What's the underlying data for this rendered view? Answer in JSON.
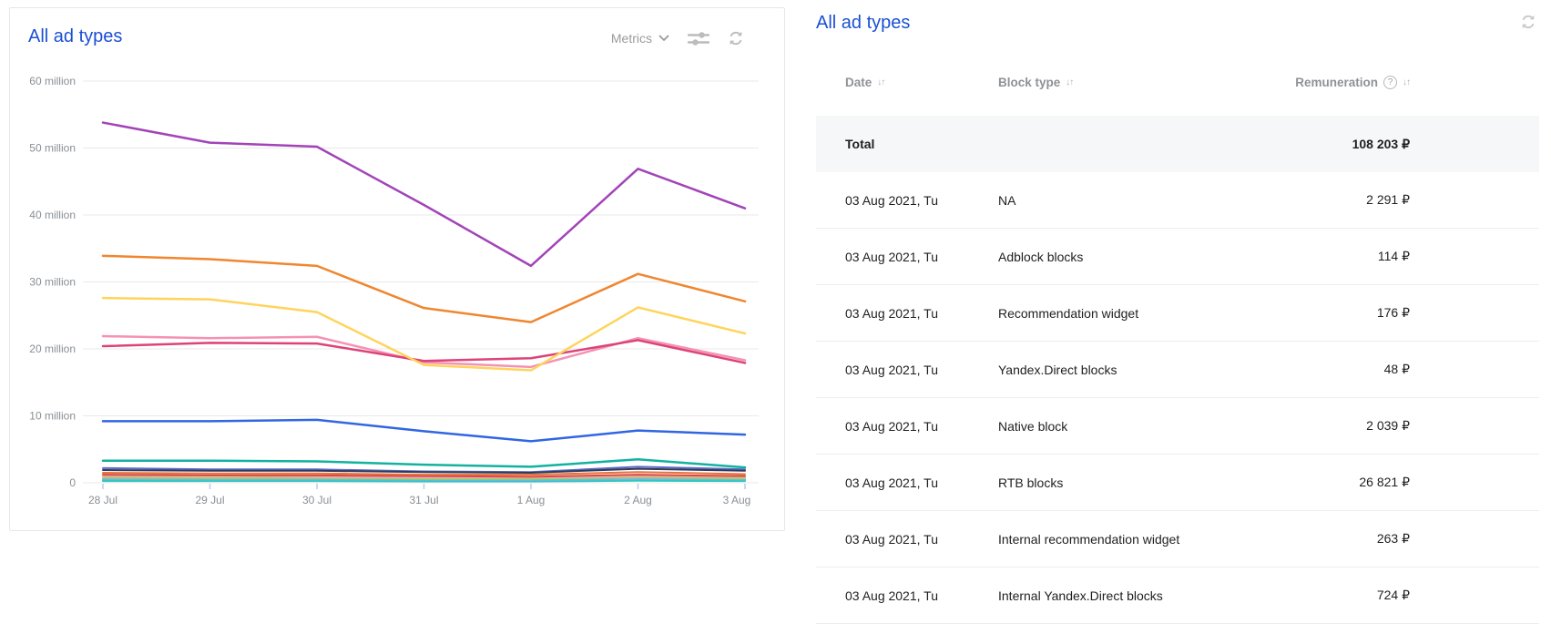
{
  "left_panel": {
    "title": "All ad types",
    "metrics_label": "Metrics",
    "chart_data": {
      "type": "line",
      "title": "All ad types",
      "x_labels": [
        "28 Jul",
        "29 Jul",
        "30 Jul",
        "31 Jul",
        "1 Aug",
        "2 Aug",
        "3 Aug"
      ],
      "y_tick_labels": [
        "0",
        "10 million",
        "20 million",
        "30 million",
        "40 million",
        "50 million",
        "60 million"
      ],
      "y_unit": "million impressions",
      "ylim": [
        0,
        60
      ],
      "grid": true,
      "legend_position": "none",
      "series": [
        {
          "name": "gray",
          "color": "#9aa4ae",
          "width": 2,
          "values": [
            0.4,
            0.4,
            0.35,
            0.35,
            0.3,
            0.4,
            0.35
          ]
        },
        {
          "name": "cyan",
          "color": "#2ec8c0",
          "width": 2,
          "values": [
            0.25,
            0.25,
            0.25,
            0.2,
            0.2,
            0.3,
            0.25
          ]
        },
        {
          "name": "sky-blue",
          "color": "#6fb4e8",
          "width": 2,
          "values": [
            0.55,
            0.5,
            0.5,
            0.45,
            0.4,
            0.55,
            0.5
          ]
        },
        {
          "name": "light-green",
          "color": "#a3ce5f",
          "width": 2,
          "values": [
            0.75,
            0.7,
            0.7,
            0.6,
            0.6,
            0.8,
            0.65
          ]
        },
        {
          "name": "pale-pink",
          "color": "#f3a8c0",
          "width": 2,
          "values": [
            1.0,
            1.0,
            0.9,
            0.8,
            0.8,
            1.0,
            0.9
          ]
        },
        {
          "name": "red",
          "color": "#d84a3f",
          "width": 2,
          "values": [
            1.2,
            1.1,
            1.1,
            1.0,
            0.9,
            1.2,
            1.0
          ]
        },
        {
          "name": "deep-orange",
          "color": "#e8703a",
          "width": 2,
          "values": [
            1.5,
            1.4,
            1.4,
            1.2,
            1.2,
            1.6,
            1.3
          ]
        },
        {
          "name": "indigo",
          "color": "#5e6bc8",
          "width": 2,
          "values": [
            2.2,
            2.0,
            2.0,
            1.7,
            1.6,
            2.4,
            2.0
          ]
        },
        {
          "name": "navy",
          "color": "#2e3a59",
          "width": 2,
          "values": [
            1.9,
            1.8,
            1.8,
            1.6,
            1.5,
            2.1,
            1.8
          ]
        },
        {
          "name": "teal",
          "color": "#12b1a1",
          "width": 2.5,
          "values": [
            3.3,
            3.3,
            3.2,
            2.7,
            2.4,
            3.5,
            2.3
          ]
        },
        {
          "name": "blue",
          "color": "#3166e2",
          "width": 2.5,
          "values": [
            9.2,
            9.2,
            9.4,
            7.7,
            6.2,
            7.8,
            7.2
          ]
        },
        {
          "name": "light-pink",
          "color": "#f492b3",
          "width": 2.5,
          "values": [
            21.9,
            21.6,
            21.8,
            18.0,
            17.3,
            21.6,
            18.3
          ]
        },
        {
          "name": "crimson",
          "color": "#dd4379",
          "width": 2.5,
          "values": [
            20.4,
            20.9,
            20.8,
            18.2,
            18.6,
            21.3,
            17.9
          ]
        },
        {
          "name": "yellow",
          "color": "#ffd45c",
          "width": 2.5,
          "values": [
            27.6,
            27.4,
            25.5,
            17.6,
            16.8,
            26.2,
            22.3
          ]
        },
        {
          "name": "orange",
          "color": "#f0862f",
          "width": 2.5,
          "values": [
            33.9,
            33.4,
            32.4,
            26.1,
            24.0,
            31.2,
            27.1
          ]
        },
        {
          "name": "purple",
          "color": "#a244b8",
          "width": 2.5,
          "values": [
            53.8,
            50.8,
            50.2,
            41.5,
            32.4,
            46.9,
            41.0
          ]
        }
      ]
    },
    "colors": {
      "axis_text": "#8a8f94",
      "gridline": "#e9e9e9",
      "tick": "#b9cde8"
    }
  },
  "right_panel": {
    "title": "All ad types",
    "glyphs": {
      "sort": "↓↑",
      "help": "?"
    },
    "table": {
      "columns": [
        {
          "label": "Date"
        },
        {
          "label": "Block type"
        },
        {
          "label": "Remuneration"
        }
      ],
      "total_row": {
        "label": "Total",
        "value": "108 203 ₽"
      },
      "rows": [
        {
          "date": "03 Aug 2021, Tu",
          "block_type": "NA",
          "remuneration": "2 291 ₽"
        },
        {
          "date": "03 Aug 2021, Tu",
          "block_type": "Adblock blocks",
          "remuneration": "114 ₽"
        },
        {
          "date": "03 Aug 2021, Tu",
          "block_type": "Recommendation widget",
          "remuneration": "176 ₽"
        },
        {
          "date": "03 Aug 2021, Tu",
          "block_type": "Yandex.Direct blocks",
          "remuneration": "48 ₽"
        },
        {
          "date": "03 Aug 2021, Tu",
          "block_type": "Native block",
          "remuneration": "2 039 ₽"
        },
        {
          "date": "03 Aug 2021, Tu",
          "block_type": "RTB blocks",
          "remuneration": "26 821 ₽"
        },
        {
          "date": "03 Aug 2021, Tu",
          "block_type": "Internal recommendation widget",
          "remuneration": "263 ₽"
        },
        {
          "date": "03 Aug 2021, Tu",
          "block_type": "Internal Yandex.Direct blocks",
          "remuneration": "724 ₽"
        }
      ]
    }
  }
}
